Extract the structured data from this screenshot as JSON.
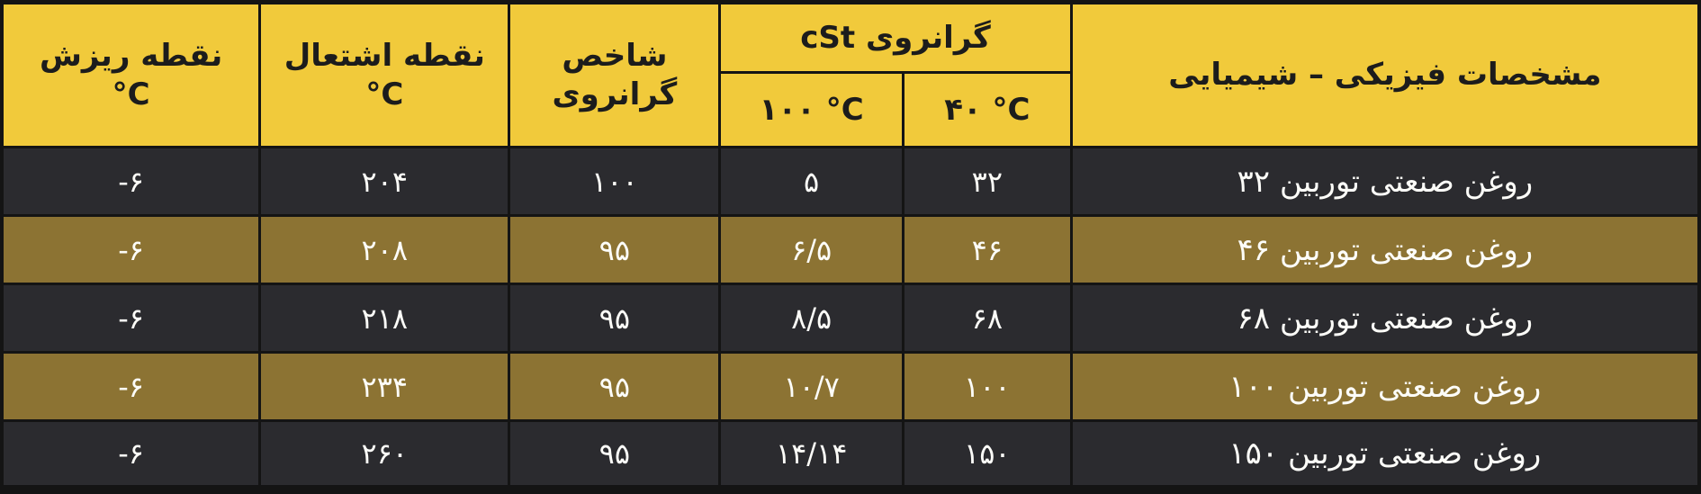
{
  "table": {
    "header": {
      "name": "مشخصات فیزیکی – شیمیایی",
      "viscosity_group": "گرانروی cSt",
      "viscosity_40": "۴۰ °C",
      "viscosity_100": "۱۰۰ °C",
      "viscosity_index_line1": "شاخص",
      "viscosity_index_line2": "گرانروی",
      "flash_point_line1": "نقطه اشتعال",
      "flash_point_line2": "°C",
      "pour_point_line1": "نقطه ریزش",
      "pour_point_line2": "°C"
    },
    "rows": [
      {
        "name": "روغن صنعتی توربین ۳۲",
        "viscosity_40": "۳۲",
        "viscosity_100": "۵",
        "viscosity_index": "۱۰۰",
        "flash_point": "۲۰۴",
        "pour_point": "-۶"
      },
      {
        "name": "روغن صنعتی توربین ۴۶",
        "viscosity_40": "۴۶",
        "viscosity_100": "۶/۵",
        "viscosity_index": "۹۵",
        "flash_point": "۲۰۸",
        "pour_point": "-۶"
      },
      {
        "name": "روغن صنعتی توربین ۶۸",
        "viscosity_40": "۶۸",
        "viscosity_100": "۸/۵",
        "viscosity_index": "۹۵",
        "flash_point": "۲۱۸",
        "pour_point": "-۶"
      },
      {
        "name": "روغن صنعتی توربین ۱۰۰",
        "viscosity_40": "۱۰۰",
        "viscosity_100": "۱۰/۷",
        "viscosity_index": "۹۵",
        "flash_point": "۲۳۴",
        "pour_point": "-۶"
      },
      {
        "name": "روغن صنعتی توربین ۱۵۰",
        "viscosity_40": "۱۵۰",
        "viscosity_100": "۱۴/۱۴",
        "viscosity_index": "۹۵",
        "flash_point": "۲۶۰",
        "pour_point": "-۶"
      }
    ]
  },
  "colors": {
    "header_bg": "#f1ca3b",
    "row_dark_bg": "#2b2b2f",
    "row_olive_bg": "#8c7333",
    "grid_border": "#141414",
    "header_text": "#1c1c1c",
    "data_text": "#fcfcf8"
  },
  "chart_data": {
    "type": "table",
    "title": "مشخصات فیزیکی – شیمیایی",
    "columns": [
      "مشخصات فیزیکی – شیمیایی",
      "گرانروی cSt ۴۰ °C",
      "گرانروی cSt ۱۰۰ °C",
      "شاخص گرانروی",
      "نقطه اشتعال °C",
      "نقطه ریزش °C"
    ],
    "rows_numeric": [
      [
        "روغن صنعتی توربین ۳۲",
        32,
        5,
        100,
        204,
        -6
      ],
      [
        "روغن صنعتی توربین ۴۶",
        46,
        6.5,
        95,
        208,
        -6
      ],
      [
        "روغن صنعتی توربین ۶۸",
        68,
        8.5,
        95,
        218,
        -6
      ],
      [
        "روغن صنعتی توربین ۱۰۰",
        100,
        10.7,
        95,
        234,
        -6
      ],
      [
        "روغن صنعتی توربین ۱۵۰",
        150,
        14.14,
        95,
        260,
        -6
      ]
    ],
    "layout": "rtl table, yellow header, alternating dark/olive rows"
  }
}
